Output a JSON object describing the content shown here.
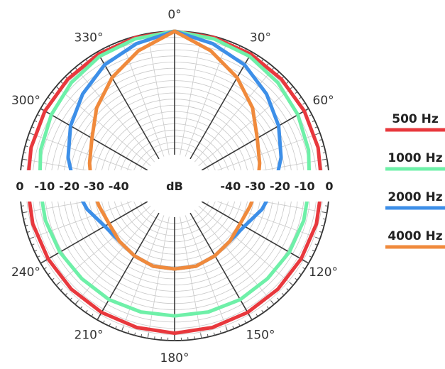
{
  "chart_data": {
    "type": "polar-line",
    "angle_labels": [
      "0°",
      "30°",
      "60°",
      "120°",
      "150°",
      "180°",
      "210°",
      "240°",
      "300°",
      "330°"
    ],
    "angle_values": [
      0,
      30,
      60,
      120,
      150,
      180,
      210,
      240,
      300,
      330
    ],
    "db_axis_unit": "dB",
    "db_axis_labels": [
      "0",
      "-10",
      "-20",
      "-30",
      "-40",
      "dB",
      "-40",
      "-30",
      "-20",
      "-10",
      "0"
    ],
    "rlim": [
      -50,
      0
    ],
    "grid": true,
    "legend_position": "right",
    "angles_deg": [
      0,
      15,
      30,
      45,
      60,
      75,
      90,
      105,
      120,
      135,
      150,
      165,
      180,
      195,
      210,
      225,
      240,
      255,
      270,
      285,
      300,
      315,
      330,
      345
    ],
    "series": [
      {
        "name": "500 Hz",
        "color": "#e8383d",
        "values": [
          0,
          -0.5,
          -1,
          -1.5,
          -2,
          -2.5,
          -3,
          -3.2,
          -3.5,
          -3.5,
          -3.5,
          -3.3,
          -3,
          -3.3,
          -3.5,
          -3.5,
          -3.5,
          -3.2,
          -3,
          -2.5,
          -2,
          -1.5,
          -1,
          -0.5
        ]
      },
      {
        "name": "1000 Hz",
        "color": "#6ef0a8",
        "values": [
          0,
          -1,
          -2,
          -3.5,
          -5,
          -6.5,
          -8,
          -8.5,
          -9,
          -9.5,
          -9.5,
          -9.8,
          -10,
          -9.8,
          -9.5,
          -9.5,
          -9,
          -8.5,
          -8,
          -6.5,
          -5,
          -3.5,
          -2,
          -1
        ]
      },
      {
        "name": "2000 Hz",
        "color": "#3d8fe8",
        "values": [
          0,
          -3,
          -6,
          -10,
          -14,
          -18,
          -22,
          -26,
          -30,
          -31,
          -30,
          -29,
          -29,
          -29,
          -30,
          -31,
          -30,
          -26,
          -22,
          -18,
          -14,
          -10,
          -6,
          -3
        ]
      },
      {
        "name": "4000 Hz",
        "color": "#f08a3c",
        "values": [
          0,
          -6,
          -12,
          -18,
          -24,
          -27,
          -29,
          -31,
          -32,
          -31,
          -30,
          -29,
          -29,
          -29,
          -30,
          -31,
          -32,
          -31,
          -29,
          -27,
          -24,
          -18,
          -12,
          -6
        ]
      }
    ]
  }
}
